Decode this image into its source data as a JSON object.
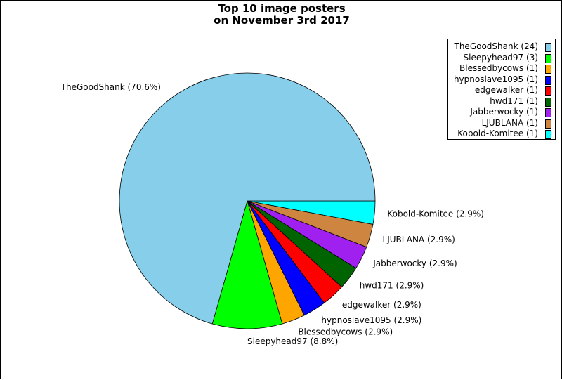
{
  "chart_data": {
    "type": "pie",
    "title": "Top 10 image posters\non November 3rd 2017",
    "slices": [
      {
        "name": "TheGoodShank",
        "count": 24,
        "percent": 70.6,
        "color": "#87CEEB",
        "legend": "TheGoodShank (24)",
        "label": "TheGoodShank (70.6%)"
      },
      {
        "name": "Sleepyhead97",
        "count": 3,
        "percent": 8.8,
        "color": "#00FF00",
        "legend": "Sleepyhead97 (3)",
        "label": "Sleepyhead97 (8.8%)"
      },
      {
        "name": "Blessedbycows",
        "count": 1,
        "percent": 2.9,
        "color": "#FFA500",
        "legend": "Blessedbycows (1)",
        "label": "Blessedbycows (2.9%)"
      },
      {
        "name": "hypnoslave1095",
        "count": 1,
        "percent": 2.9,
        "color": "#0000FF",
        "legend": "hypnoslave1095 (1)",
        "label": "hypnoslave1095 (2.9%)"
      },
      {
        "name": "edgewalker",
        "count": 1,
        "percent": 2.9,
        "color": "#FF0000",
        "legend": "edgewalker (1)",
        "label": "edgewalker (2.9%)"
      },
      {
        "name": "hwd171",
        "count": 1,
        "percent": 2.9,
        "color": "#006400",
        "legend": "hwd171 (1)",
        "label": "hwd171 (2.9%)"
      },
      {
        "name": "Jabberwocky",
        "count": 1,
        "percent": 2.9,
        "color": "#A020F0",
        "legend": "Jabberwocky (1)",
        "label": "Jabberwocky (2.9%)"
      },
      {
        "name": "LJUBLANA",
        "count": 1,
        "percent": 2.9,
        "color": "#CD853F",
        "legend": "LJUBLANA (1)",
        "label": "LJUBLANA (2.9%)"
      },
      {
        "name": "Kobold-Komitee",
        "count": 1,
        "percent": 2.9,
        "color": "#00FFFF",
        "legend": "Kobold-Komitee (1)",
        "label": "Kobold-Komitee (2.9%)"
      }
    ],
    "legend_position": "top-right"
  }
}
